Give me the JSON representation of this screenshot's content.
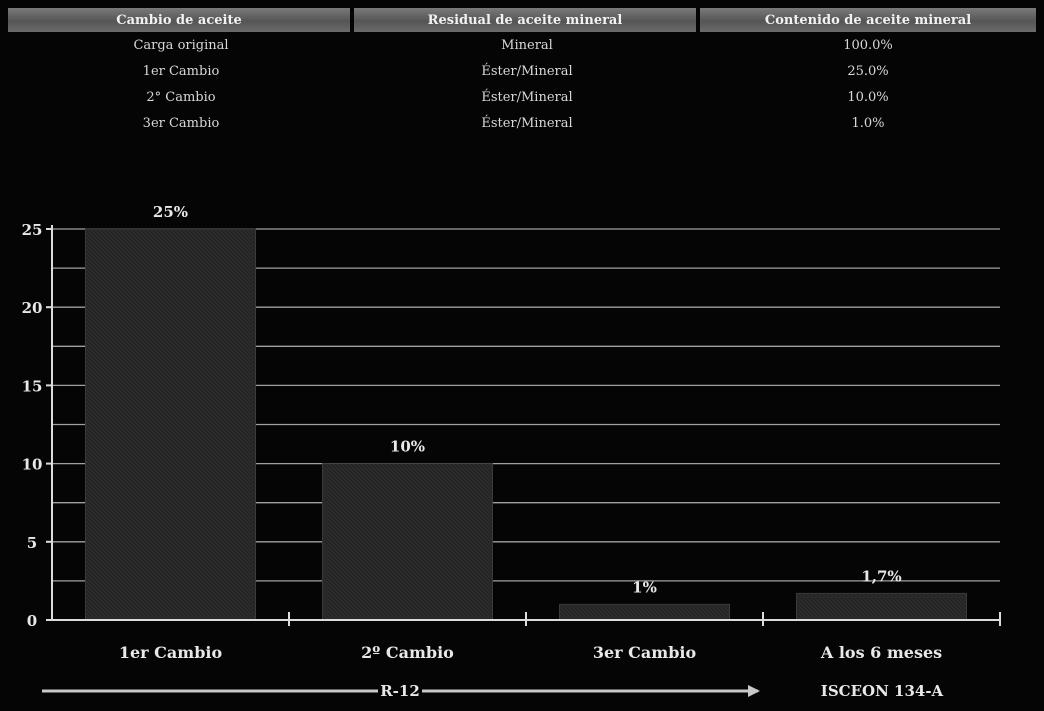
{
  "table": {
    "headers": [
      "Cambio de aceite",
      "Residual de aceite mineral",
      "Contenido de aceite mineral"
    ],
    "rows": [
      [
        "Carga original",
        "Mineral",
        "100.0%"
      ],
      [
        "1er Cambio",
        "Éster/Mineral",
        "25.0%"
      ],
      [
        "2° Cambio",
        "Éster/Mineral",
        "10.0%"
      ],
      [
        "3er Cambio",
        "Éster/Mineral",
        "1.0%"
      ]
    ]
  },
  "chart_data": {
    "type": "bar",
    "categories": [
      "1er Cambio",
      "2º Cambio",
      "3er Cambio",
      "A los 6 meses"
    ],
    "values": [
      25,
      10,
      1,
      1.7
    ],
    "data_labels": [
      "25%",
      "10%",
      "1%",
      "1,7%"
    ],
    "yticks": [
      0,
      5,
      10,
      15,
      20,
      25
    ],
    "ylim": [
      0,
      25
    ],
    "grid": true,
    "legend": "none",
    "arrow_label": "R-12",
    "right_label": "ISCEON 134-A",
    "colors": {
      "bar": "#2a2a2a",
      "grid": "#bdbdbd",
      "text": "#e8e8e8",
      "background": "#050505"
    }
  }
}
